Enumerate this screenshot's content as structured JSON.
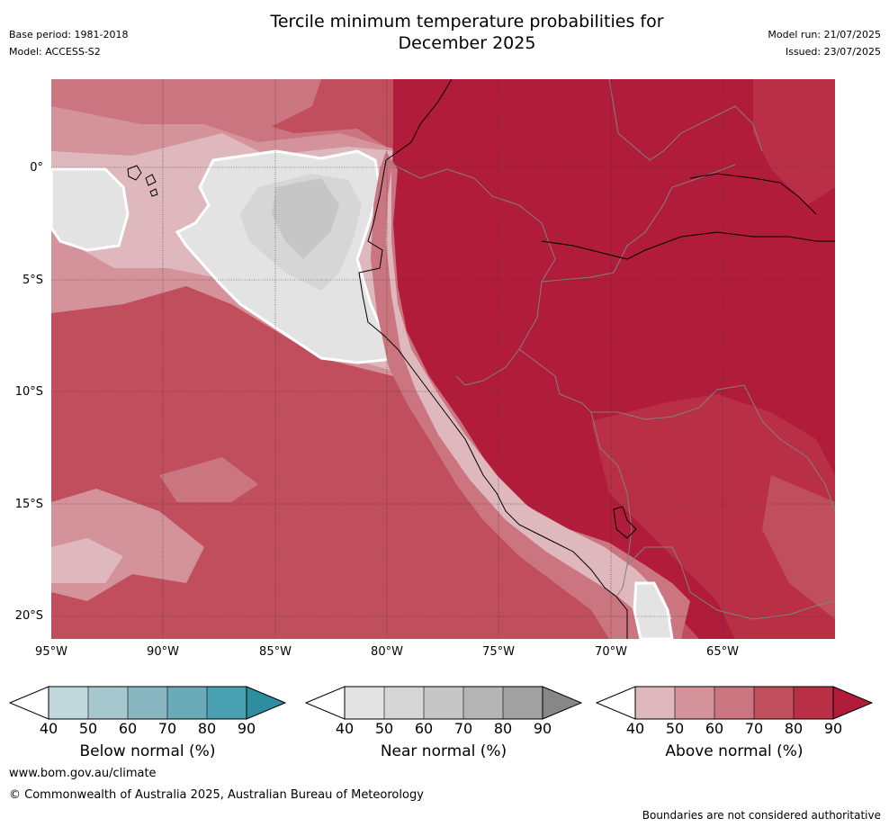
{
  "header": {
    "base_period": "Base period: 1981-2018",
    "model": "Model: ACCESS-S2",
    "title_line1": "Tercile minimum temperature probabilities for",
    "title_line2": "December 2025",
    "model_run": "Model run: 21/07/2025",
    "issued": "Issued: 23/07/2025"
  },
  "map": {
    "lat_labels": [
      "0°",
      "5°S",
      "10°S",
      "15°S",
      "20°S"
    ],
    "lon_labels": [
      "95°W",
      "90°W",
      "85°W",
      "80°W",
      "75°W",
      "70°W",
      "65°W"
    ],
    "colors": {
      "above_40_50": "#dfb8bd",
      "above_50_60": "#d4939b",
      "above_60_70": "#cb7580",
      "above_70_80": "#c04e5c",
      "above_80_90": "#b93046",
      "above_90": "#b01c3a",
      "near_40_50": "#e3e3e3",
      "near_50_60": "#d6d6d6",
      "near_60_70": "#c6c6c6"
    }
  },
  "colorbars": [
    {
      "label": "Below normal (%)",
      "ticks": [
        "40",
        "50",
        "60",
        "70",
        "80",
        "90"
      ],
      "colors": [
        "#c0d7dc",
        "#a7c7ce",
        "#88b6c1",
        "#6aa9b6",
        "#48a0b0",
        "#2e8ea0"
      ]
    },
    {
      "label": "Near normal (%)",
      "ticks": [
        "40",
        "50",
        "60",
        "70",
        "80",
        "90"
      ],
      "colors": [
        "#e3e3e3",
        "#d6d6d6",
        "#c6c6c6",
        "#b5b5b5",
        "#a1a1a1",
        "#878787"
      ]
    },
    {
      "label": "Above normal (%)",
      "ticks": [
        "40",
        "50",
        "60",
        "70",
        "80",
        "90"
      ],
      "colors": [
        "#dfb8bd",
        "#d4939b",
        "#cb7580",
        "#c04e5c",
        "#b93046",
        "#b01c3a"
      ]
    }
  ],
  "footer": {
    "website": "www.bom.gov.au/climate",
    "copyright": "© Commonwealth of Australia 2025, Australian Bureau of Meteorology",
    "disclaimer": "Boundaries are not considered authoritative"
  }
}
